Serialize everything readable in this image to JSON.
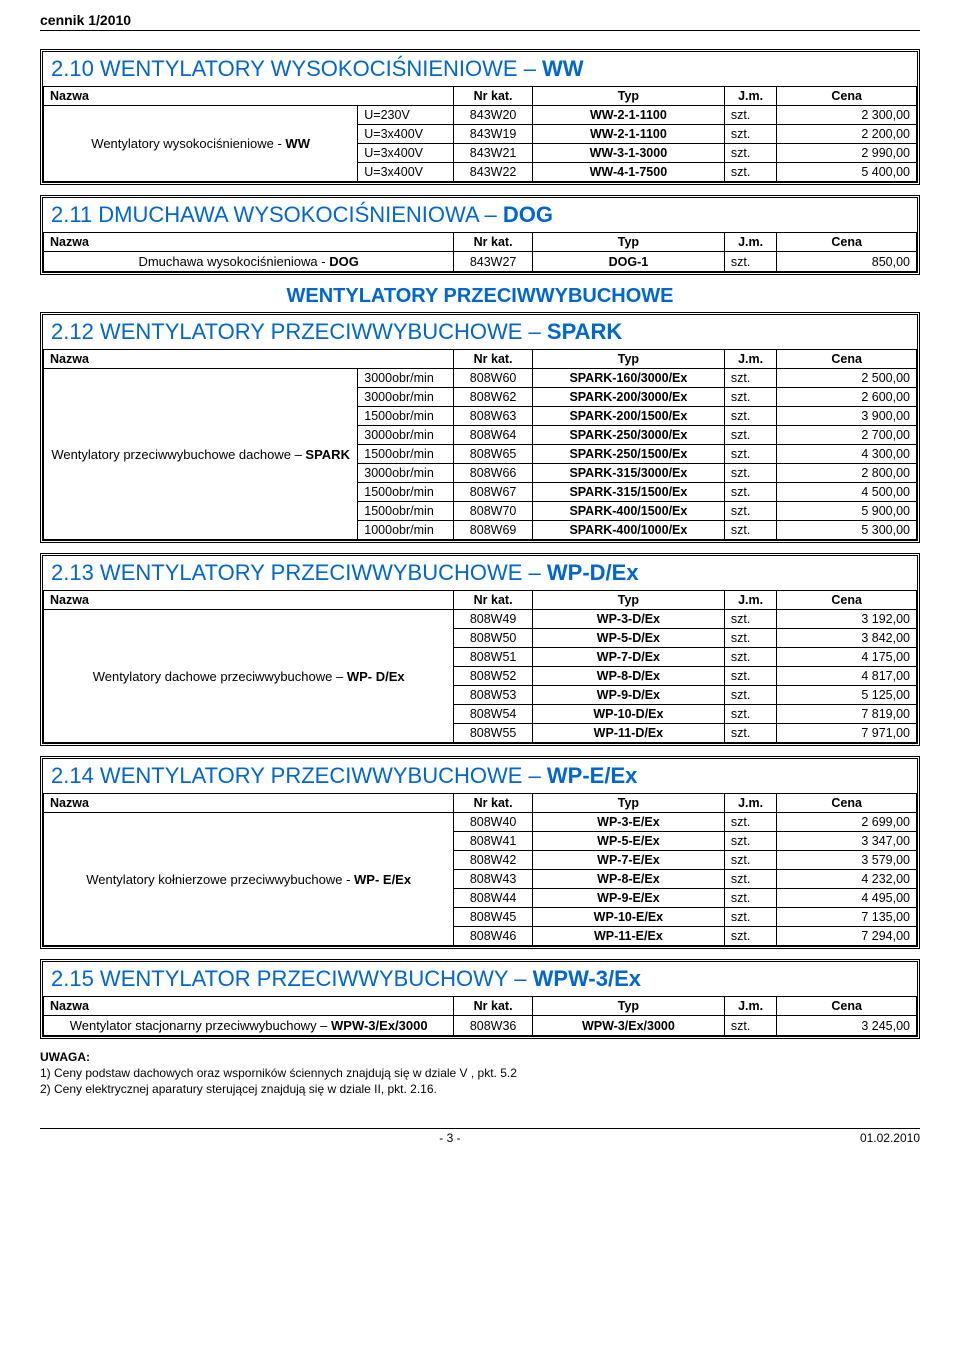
{
  "doc_header": "cennik 1/2010",
  "footer_page": "- 3 -",
  "footer_date": "01.02.2010",
  "common": {
    "h_nazwa": "Nazwa",
    "h_nrkat": "Nr kat.",
    "h_typ": "Typ",
    "h_jm": "J.m.",
    "h_cena": "Cena"
  },
  "sec_ww": {
    "title_prefix": "2.10 WENTYLATORY WYSOKOCIŚNIENIOWE – ",
    "title_bold": "WW",
    "name_html": "Wentylatory wysokociśnieniowe - <b>WW</b>",
    "rows": [
      {
        "sub": "U=230V",
        "kat": "843W20",
        "typ": "WW-2-1-1100",
        "jm": "szt.",
        "cena": "2 300,00"
      },
      {
        "sub": "U=3x400V",
        "kat": "843W19",
        "typ": "WW-2-1-1100",
        "jm": "szt.",
        "cena": "2 200,00"
      },
      {
        "sub": "U=3x400V",
        "kat": "843W21",
        "typ": "WW-3-1-3000",
        "jm": "szt.",
        "cena": "2 990,00"
      },
      {
        "sub": "U=3x400V",
        "kat": "843W22",
        "typ": "WW-4-1-7500",
        "jm": "szt.",
        "cena": "5 400,00"
      }
    ]
  },
  "sec_dog": {
    "title_prefix": "2.11 DMUCHAWA WYSOKOCIŚNIENIOWA – ",
    "title_bold": "DOG",
    "name_html": "Dmuchawa wysokociśnieniowa - <b>DOG</b>",
    "rows": [
      {
        "kat": "843W27",
        "typ": "DOG-1",
        "jm": "szt.",
        "cena": "850,00"
      }
    ]
  },
  "heading_przeciw": "WENTYLATORY PRZECIWWYBUCHOWE",
  "sec_spark": {
    "title_prefix": "2.12 WENTYLATORY PRZECIWWYBUCHOWE – ",
    "title_bold": "SPARK",
    "name_html": "Wentylatory przeciwwybuchowe dachowe – <b>SPARK</b>",
    "rows": [
      {
        "sub": "3000obr/min",
        "kat": "808W60",
        "typ": "SPARK-160/3000/Ex",
        "jm": "szt.",
        "cena": "2 500,00"
      },
      {
        "sub": "3000obr/min",
        "kat": "808W62",
        "typ": "SPARK-200/3000/Ex",
        "jm": "szt.",
        "cena": "2 600,00"
      },
      {
        "sub": "1500obr/min",
        "kat": "808W63",
        "typ": "SPARK-200/1500/Ex",
        "jm": "szt.",
        "cena": "3 900,00"
      },
      {
        "sub": "3000obr/min",
        "kat": "808W64",
        "typ": "SPARK-250/3000/Ex",
        "jm": "szt.",
        "cena": "2 700,00"
      },
      {
        "sub": "1500obr/min",
        "kat": "808W65",
        "typ": "SPARK-250/1500/Ex",
        "jm": "szt.",
        "cena": "4 300,00"
      },
      {
        "sub": "3000obr/min",
        "kat": "808W66",
        "typ": "SPARK-315/3000/Ex",
        "jm": "szt.",
        "cena": "2 800,00"
      },
      {
        "sub": "1500obr/min",
        "kat": "808W67",
        "typ": "SPARK-315/1500/Ex",
        "jm": "szt.",
        "cena": "4 500,00"
      },
      {
        "sub": "1500obr/min",
        "kat": "808W70",
        "typ": "SPARK-400/1500/Ex",
        "jm": "szt.",
        "cena": "5 900,00"
      },
      {
        "sub": "1000obr/min",
        "kat": "808W69",
        "typ": "SPARK-400/1000/Ex",
        "jm": "szt.",
        "cena": "5 300,00"
      }
    ]
  },
  "sec_wpd": {
    "title_prefix": "2.13 WENTYLATORY PRZECIWWYBUCHOWE – ",
    "title_bold": "WP-D/Ex",
    "name_html": "Wentylatory dachowe przeciwwybuchowe – <b>WP- D/Ex</b>",
    "rows": [
      {
        "kat": "808W49",
        "typ": "WP-3-D/Ex",
        "jm": "szt.",
        "cena": "3 192,00"
      },
      {
        "kat": "808W50",
        "typ": "WP-5-D/Ex",
        "jm": "szt.",
        "cena": "3 842,00"
      },
      {
        "kat": "808W51",
        "typ": "WP-7-D/Ex",
        "jm": "szt.",
        "cena": "4 175,00"
      },
      {
        "kat": "808W52",
        "typ": "WP-8-D/Ex",
        "jm": "szt.",
        "cena": "4 817,00"
      },
      {
        "kat": "808W53",
        "typ": "WP-9-D/Ex",
        "jm": "szt.",
        "cena": "5 125,00"
      },
      {
        "kat": "808W54",
        "typ": "WP-10-D/Ex",
        "jm": "szt.",
        "cena": "7 819,00"
      },
      {
        "kat": "808W55",
        "typ": "WP-11-D/Ex",
        "jm": "szt.",
        "cena": "7 971,00"
      }
    ]
  },
  "sec_wpe": {
    "title_prefix": "2.14 WENTYLATORY PRZECIWWYBUCHOWE – ",
    "title_bold": "WP-E/Ex",
    "name_html": "Wentylatory kołnierzowe przeciwwybuchowe - <b>WP- E/Ex</b>",
    "rows": [
      {
        "kat": "808W40",
        "typ": "WP-3-E/Ex",
        "jm": "szt.",
        "cena": "2 699,00"
      },
      {
        "kat": "808W41",
        "typ": "WP-5-E/Ex",
        "jm": "szt.",
        "cena": "3 347,00"
      },
      {
        "kat": "808W42",
        "typ": "WP-7-E/Ex",
        "jm": "szt.",
        "cena": "3 579,00"
      },
      {
        "kat": "808W43",
        "typ": "WP-8-E/Ex",
        "jm": "szt.",
        "cena": "4 232,00"
      },
      {
        "kat": "808W44",
        "typ": "WP-9-E/Ex",
        "jm": "szt.",
        "cena": "4 495,00"
      },
      {
        "kat": "808W45",
        "typ": "WP-10-E/Ex",
        "jm": "szt.",
        "cena": "7 135,00"
      },
      {
        "kat": "808W46",
        "typ": "WP-11-E/Ex",
        "jm": "szt.",
        "cena": "7 294,00"
      }
    ]
  },
  "sec_wpw": {
    "title_prefix": "2.15 WENTYLATOR PRZECIWWYBUCHOWY – ",
    "title_bold": "WPW-3/Ex",
    "name_html": "Wentylator stacjonarny przeciwwybuchowy – <b>WPW-3/Ex/3000</b>",
    "rows": [
      {
        "kat": "808W36",
        "typ": "WPW-3/Ex/3000",
        "jm": "szt.",
        "cena": "3 245,00"
      }
    ]
  },
  "notes": {
    "uwaga": "UWAGA:",
    "n1": "1) Ceny podstaw dachowych oraz wsporników ściennych znajdują się w dziale V , pkt. 5.2",
    "n2": "2) Ceny elektrycznej aparatury sterującej znajdują się w dziale II, pkt. 2.16."
  },
  "layout": {
    "col_widths_sub": {
      "name": "36%",
      "sub": "11%",
      "kat": "9%",
      "typ": "22%",
      "jm": "6%",
      "cena": "16%"
    },
    "col_widths_plain": {
      "name": "47%",
      "kat": "9%",
      "typ": "22%",
      "jm": "6%",
      "cena": "16%"
    }
  }
}
